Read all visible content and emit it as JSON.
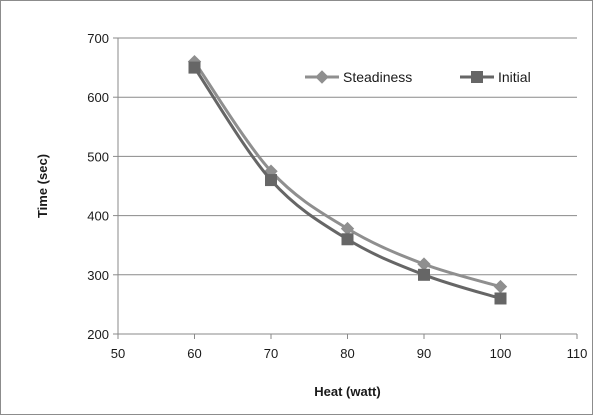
{
  "chart_data": {
    "type": "line",
    "xlabel": "Heat (watt)",
    "ylabel": "Time (sec)",
    "xlim": [
      50,
      110
    ],
    "ylim": [
      200,
      700
    ],
    "xticks": [
      50,
      60,
      70,
      80,
      90,
      100,
      110
    ],
    "yticks": [
      200,
      300,
      400,
      500,
      600,
      700
    ],
    "grid": "horizontal",
    "legend": "top-right",
    "series": [
      {
        "name": "Steadiness",
        "marker": "diamond",
        "color": "#8f8f8f",
        "x": [
          60,
          70,
          80,
          90,
          100
        ],
        "y": [
          660,
          475,
          378,
          318,
          280
        ]
      },
      {
        "name": "Initial",
        "marker": "square",
        "color": "#666666",
        "x": [
          60,
          70,
          80,
          90,
          100
        ],
        "y": [
          650,
          460,
          360,
          300,
          260
        ]
      }
    ]
  }
}
